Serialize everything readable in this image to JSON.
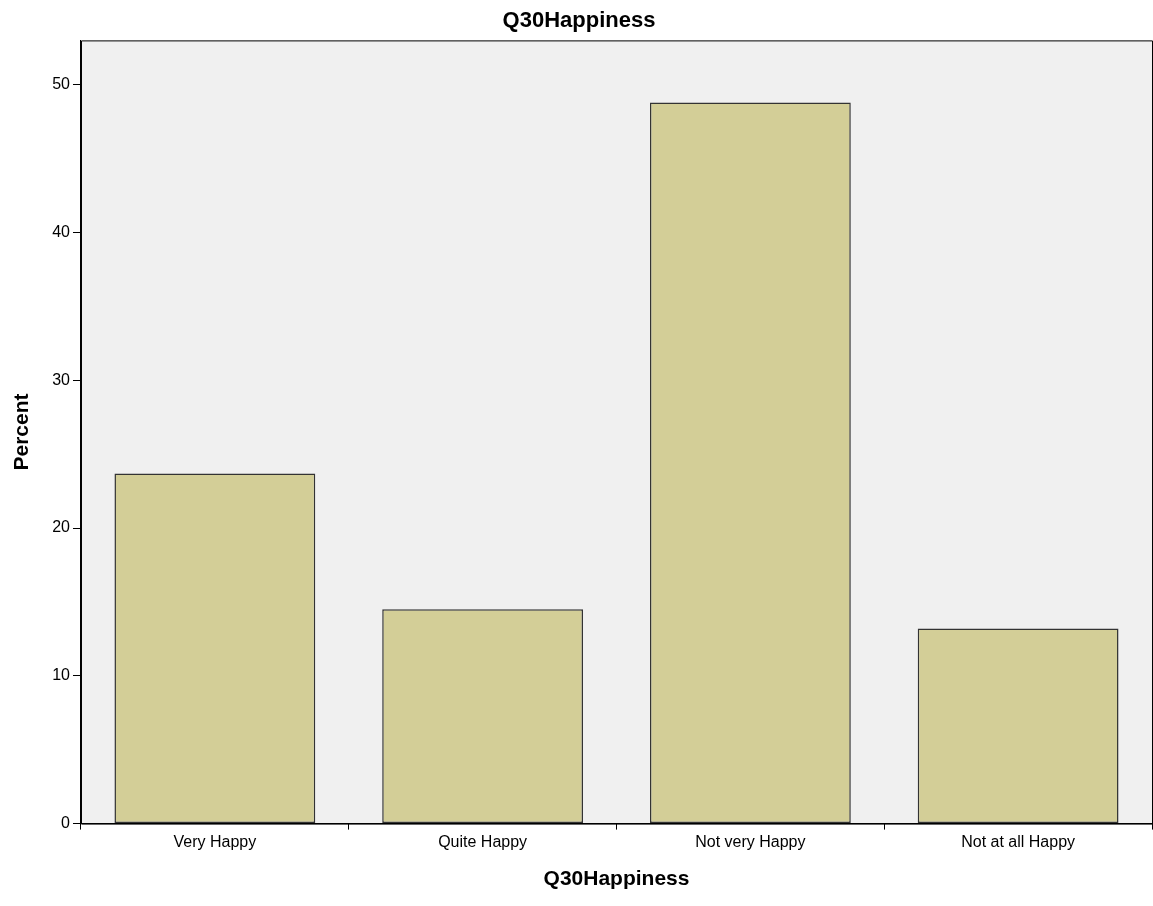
{
  "chart_data": {
    "type": "bar",
    "title": "Q30Happiness",
    "xlabel": "Q30Happiness",
    "ylabel": "Percent",
    "categories": [
      "Very Happy",
      "Quite Happy",
      "Not very Happy",
      "Not at all Happy"
    ],
    "values": [
      23.7,
      14.5,
      48.8,
      13.2
    ],
    "color": "#d3ce97",
    "ylim": [
      0,
      53
    ],
    "yticks": [
      0,
      10,
      20,
      30,
      40,
      50
    ],
    "grid": false,
    "legend": false
  }
}
